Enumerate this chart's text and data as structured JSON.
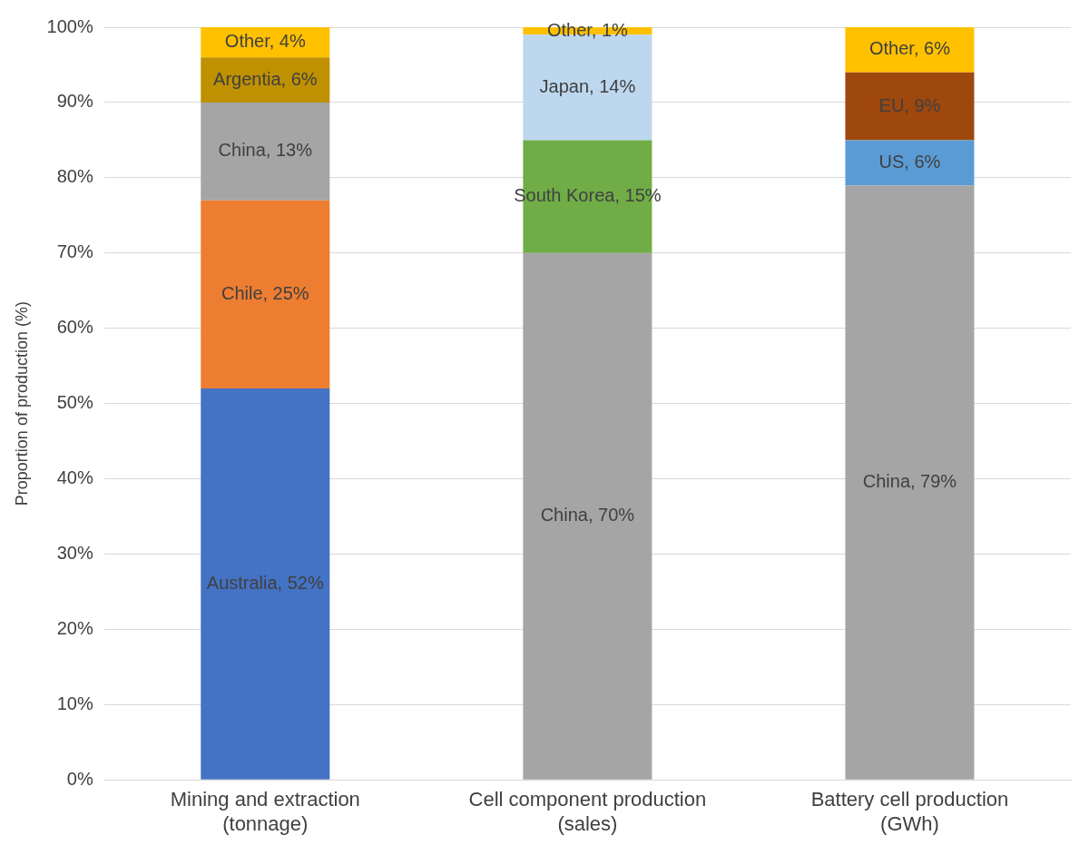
{
  "chart_data": {
    "type": "bar",
    "stacked": true,
    "ylabel": "Proportion of production (%)",
    "categories": [
      "Mining and extraction\n(tonnage)",
      "Cell component production\n(sales)",
      "Battery cell production\n(GWh)"
    ],
    "series": [
      {
        "values": [
          52,
          70,
          79
        ],
        "colors": [
          "#4472c4",
          "#a5a5a5",
          "#a5a5a5"
        ],
        "value_labels": [
          "Australia, 52%",
          "China, 70%",
          "China, 79%"
        ]
      },
      {
        "values": [
          25,
          15,
          6
        ],
        "colors": [
          "#ed7d31",
          "#70ad47",
          "#5b9bd5"
        ],
        "value_labels": [
          "Chile, 25%",
          "South Korea, 15%",
          "US, 6%"
        ]
      },
      {
        "values": [
          13,
          14,
          9
        ],
        "colors": [
          "#a5a5a5",
          "#bdd7ee",
          "#9e480e"
        ],
        "value_labels": [
          "China, 13%",
          "Japan, 14%",
          "EU, 9%"
        ]
      },
      {
        "values": [
          6,
          1,
          6
        ],
        "colors": [
          "#bf9000",
          "#ffc000",
          "#ffc000"
        ],
        "value_labels": [
          "Argentia, 6%",
          "Other, 1%",
          "Other, 6%"
        ]
      },
      {
        "values": [
          4,
          null,
          null
        ],
        "colors": [
          "#ffc000",
          "#ffc000",
          "#ffc000"
        ],
        "value_labels": [
          "Other, 4%",
          null,
          null
        ]
      }
    ],
    "ylim": [
      0,
      100
    ],
    "yticks": [
      {
        "value": 0,
        "label": "0%"
      },
      {
        "value": 10,
        "label": "10%"
      },
      {
        "value": 20,
        "label": "20%"
      },
      {
        "value": 30,
        "label": "30%"
      },
      {
        "value": 40,
        "label": "40%"
      },
      {
        "value": 50,
        "label": "50%"
      },
      {
        "value": 60,
        "label": "60%"
      },
      {
        "value": 70,
        "label": "70%"
      },
      {
        "value": 80,
        "label": "80%"
      },
      {
        "value": 90,
        "label": "90%"
      },
      {
        "value": 100,
        "label": "100%"
      }
    ],
    "grid": "y"
  }
}
